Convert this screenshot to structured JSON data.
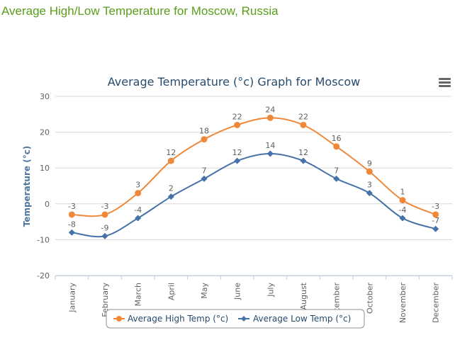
{
  "page_title": "Average High/Low Temperature for Moscow, Russia",
  "colors": {
    "page_title": "#5a9e1a",
    "high": "#f0883a",
    "low": "#4572a7",
    "grid": "#d8d8d8"
  },
  "menu_icon": "hamburger-menu-icon",
  "chart_data": {
    "type": "line",
    "title": "Average Temperature (°c) Graph for Moscow",
    "xlabel": "",
    "ylabel": "Temperature (°c)",
    "ylim": [
      -20,
      30
    ],
    "yticks": [
      -20,
      -10,
      0,
      10,
      20,
      30
    ],
    "grid": true,
    "legend_position": "bottom-center",
    "categories": [
      "January",
      "February",
      "March",
      "April",
      "May",
      "June",
      "July",
      "August",
      "September",
      "October",
      "November",
      "December"
    ],
    "series": [
      {
        "name": "Average High Temp (°c)",
        "color": "#f0883a",
        "marker": "circle",
        "values": [
          -3,
          -3,
          3,
          12,
          18,
          22,
          24,
          22,
          16,
          9,
          1,
          -3
        ]
      },
      {
        "name": "Average Low Temp (°c)",
        "color": "#4572a7",
        "marker": "diamond",
        "values": [
          -8,
          -9,
          -4,
          2,
          7,
          12,
          14,
          12,
          7,
          3,
          -4,
          -7
        ]
      }
    ]
  }
}
